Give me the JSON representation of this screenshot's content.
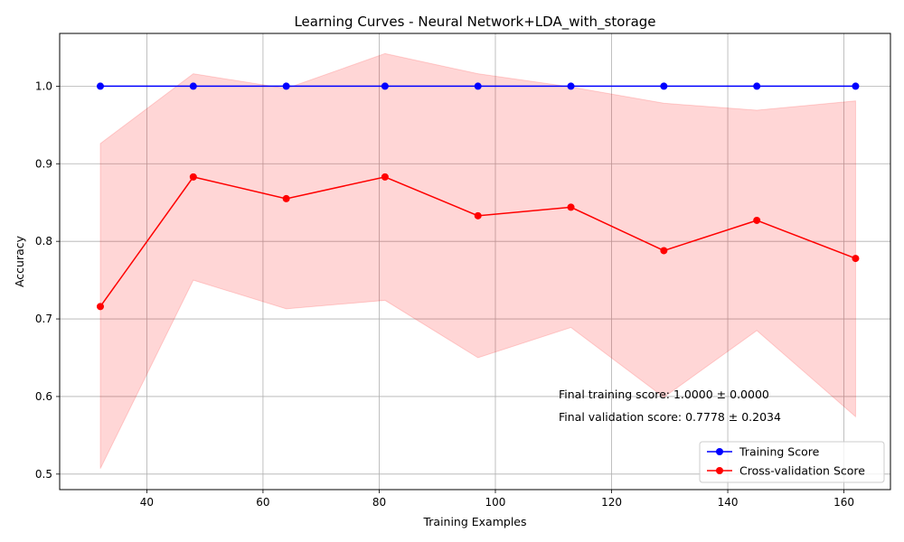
{
  "chart_data": {
    "type": "line",
    "title": "Learning Curves - Neural Network+LDA_with_storage",
    "xlabel": "Training Examples",
    "ylabel": "Accuracy",
    "xlim": [
      25,
      168
    ],
    "ylim": [
      0.48,
      1.068
    ],
    "xticks": [
      40,
      60,
      80,
      100,
      120,
      140,
      160
    ],
    "yticks": [
      0.5,
      0.6,
      0.7,
      0.8,
      0.9,
      1.0
    ],
    "grid": true,
    "legend_position": "lower right",
    "x": [
      32,
      48,
      64,
      81,
      97,
      113,
      129,
      145,
      162
    ],
    "series": [
      {
        "name": "Training Score",
        "color": "#0000ff",
        "marker": "circle",
        "values": [
          1.0,
          1.0,
          1.0,
          1.0,
          1.0,
          1.0,
          1.0,
          1.0,
          1.0
        ],
        "band_upper": [
          1.0,
          1.0,
          1.0,
          1.0,
          1.0,
          1.0,
          1.0,
          1.0,
          1.0
        ],
        "band_lower": [
          1.0,
          1.0,
          1.0,
          1.0,
          1.0,
          1.0,
          1.0,
          1.0,
          1.0
        ]
      },
      {
        "name": "Cross-validation Score",
        "color": "#ff0000",
        "band_color": "#ff0000",
        "marker": "circle",
        "values": [
          0.716,
          0.883,
          0.855,
          0.883,
          0.833,
          0.844,
          0.788,
          0.827,
          0.778
        ],
        "band_upper": [
          0.926,
          1.016,
          0.997,
          1.042,
          1.016,
          0.999,
          0.978,
          0.969,
          0.981
        ],
        "band_lower": [
          0.507,
          0.75,
          0.713,
          0.724,
          0.65,
          0.689,
          0.599,
          0.685,
          0.574
        ]
      }
    ],
    "annotations": [
      "Final training score: 1.0000 ± 0.0000",
      "Final validation score: 0.7778 ± 0.2034"
    ]
  }
}
